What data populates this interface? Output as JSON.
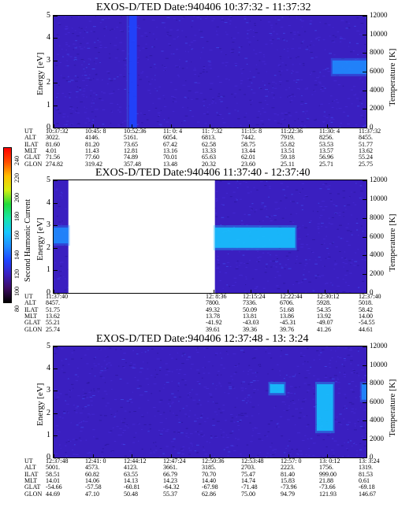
{
  "colors": {
    "background_plot": "#3a1fc0",
    "gap": "#ffffff",
    "enhancement": "#1f66ff",
    "axis": "#000000"
  },
  "colorbar": {
    "label": "Second Harmonic Current",
    "ticks": [
      "240",
      "220",
      "200",
      "180",
      "160",
      "140",
      "120",
      "100",
      "80"
    ],
    "stops": [
      "#000000",
      "#3c0b63",
      "#3a1fc0",
      "#1f45ff",
      "#1f8dff",
      "#16c7ff",
      "#17e6a8",
      "#21dc3b",
      "#d5ef12",
      "#ffc000",
      "#ff4d00",
      "#ff0000"
    ]
  },
  "panels": [
    {
      "title": "EXOS-D/TED   Date:940406  10:37:32 - 11:37:32",
      "ylabel_left": "Energy [eV]",
      "ylabel_right": "Temperature [K]",
      "yticks_left": [
        "0",
        "1",
        "2",
        "3",
        "4",
        "5"
      ],
      "yticks_right": [
        "0",
        "2000",
        "4000",
        "6000",
        "8000",
        "10000",
        "12000"
      ],
      "row_labels": [
        "UT",
        "ALT",
        "ILAT",
        "MLT",
        "GLAT",
        "GLON"
      ],
      "columns": [
        [
          "10:37:32",
          "3022.",
          "81.60",
          "4.01",
          "71.56",
          "274.82"
        ],
        [
          "10:45: 8",
          "4146.",
          "81.20",
          "11.43",
          "77.60",
          "319.42"
        ],
        [
          "10:52:36",
          "5161.",
          "73.65",
          "12.81",
          "74.89",
          "357.48"
        ],
        [
          "11: 0: 4",
          "6054.",
          "67.42",
          "13.16",
          "70.01",
          "13.48"
        ],
        [
          "11: 7:32",
          "6813.",
          "62.58",
          "13.33",
          "65.63",
          "20.32"
        ],
        [
          "11:15: 8",
          "7442.",
          "58.75",
          "13.44",
          "62.01",
          "23.60"
        ],
        [
          "11:22:36",
          "7919.",
          "55.82",
          "13.51",
          "59.18",
          "25.11"
        ],
        [
          "11:30: 4",
          "8256.",
          "53.53",
          "13.57",
          "56.96",
          "25.71"
        ],
        [
          "11:37:32",
          "8455.",
          "51.77",
          "13.62",
          "55.24",
          "25.75"
        ]
      ]
    },
    {
      "title": "EXOS-D/TED   Date:940406  11:37:40 - 12:37:40",
      "ylabel_left": "Energy [eV]",
      "ylabel_right": "Temperature [K]",
      "yticks_left": [
        "0",
        "1",
        "2",
        "3",
        "4",
        "5"
      ],
      "yticks_right": [
        "0",
        "2000",
        "4000",
        "6000",
        "8000",
        "10000",
        "12000"
      ],
      "row_labels": [
        "UT",
        "ALT",
        "ILAT",
        "MLT",
        "GLAT",
        "GLON"
      ],
      "columns": [
        [
          "11:37:40",
          "8457.",
          "51.75",
          "13.62",
          "55.21",
          "25.74"
        ],
        [
          "12: 8:36",
          "7800.",
          "49.32",
          "13.78",
          "-41.92",
          "39.61"
        ],
        [
          "12:15:24",
          "7336.",
          "50.09",
          "13.81",
          "-43.03",
          "39.36"
        ],
        [
          "12:22:44",
          "6706.",
          "51.68",
          "13.86",
          "-45.31",
          "39.76"
        ],
        [
          "12:30:12",
          "5928.",
          "54.35",
          "13.92",
          "-49.07",
          "41.26"
        ],
        [
          "12:37:40",
          "5018.",
          "58.42",
          "14.00",
          "-54.55",
          "44.61"
        ]
      ]
    },
    {
      "title": "EXOS-D/TED   Date:940406  12:37:48 - 13: 3:24",
      "ylabel_left": "Energy [eV]",
      "ylabel_right": "Temperature [K]",
      "yticks_left": [
        "0",
        "1",
        "2",
        "3",
        "4",
        "5"
      ],
      "yticks_right": [
        "0",
        "2000",
        "4000",
        "6000",
        "8000",
        "10000",
        "12000"
      ],
      "row_labels": [
        "UT",
        "ALT",
        "ILAT",
        "MLT",
        "GLAT",
        "GLON"
      ],
      "columns": [
        [
          "12:37:48",
          "5001.",
          "58.51",
          "14.01",
          "-54.66",
          "44.69"
        ],
        [
          "12:41: 0",
          "4573.",
          "60.82",
          "14.06",
          "-57.58",
          "47.10"
        ],
        [
          "12:44:12",
          "4123.",
          "63.55",
          "14.13",
          "-60.81",
          "50.48"
        ],
        [
          "12:47:24",
          "3661.",
          "66.79",
          "14.23",
          "-64.32",
          "55.37"
        ],
        [
          "12:50:36",
          "3185.",
          "70.70",
          "14.40",
          "-67.98",
          "62.86"
        ],
        [
          "12:53:48",
          "2703.",
          "75.47",
          "14.74",
          "-71.48",
          "75.00"
        ],
        [
          "12:57: 0",
          "2223.",
          "81.40",
          "15.83",
          "-73.96",
          "94.79"
        ],
        [
          "13: 0:12",
          "1756.",
          "999.00",
          "21.88",
          "-73.66",
          "121.93"
        ],
        [
          "13: 3:24",
          "1319.",
          "81.53",
          "0.61",
          "-69.18",
          "146.67"
        ]
      ]
    }
  ],
  "chart_data": [
    {
      "type": "heatmap",
      "title": "EXOS-D/TED   Date:940406  10:37:32 - 11:37:32",
      "xlabel": "UT",
      "ylabel": "Energy [eV]",
      "ylabel_right": "Temperature [K]",
      "ylim": [
        0,
        5
      ],
      "ylim_right": [
        0,
        12000
      ],
      "x_ticks": [
        "10:37:32",
        "10:45: 8",
        "10:52:36",
        "11: 0: 4",
        "11: 7:32",
        "11:15: 8",
        "11:22:36",
        "11:30: 4",
        "11:37:32"
      ],
      "features": [
        {
          "kind": "vertical-band",
          "t_start": "10:52:00",
          "t_end": "10:53:30",
          "level": 130
        },
        {
          "kind": "warm-patch",
          "t_start": "11:31:00",
          "t_end": "11:37:32",
          "energy": [
            2.4,
            3.0
          ],
          "level": 140
        }
      ]
    },
    {
      "type": "heatmap",
      "title": "EXOS-D/TED   Date:940406  11:37:40 - 12:37:40",
      "xlabel": "UT",
      "ylabel": "Energy [eV]",
      "ylabel_right": "Temperature [K]",
      "ylim": [
        0,
        5
      ],
      "ylim_right": [
        0,
        12000
      ],
      "x_ticks": [
        "11:37:40",
        "12: 8:36",
        "12:15:24",
        "12:22:44",
        "12:30:12",
        "12:37:40"
      ],
      "features": [
        {
          "kind": "data-gap",
          "t_start": "11:40:30",
          "t_end": "12: 8:36"
        },
        {
          "kind": "enhancement-band",
          "t_start": "12: 8:36",
          "t_end": "12:24:00",
          "energy": [
            2.0,
            2.9
          ],
          "level": 150
        },
        {
          "kind": "enhancement-band",
          "t_start": "11:37:40",
          "t_end": "11:40:30",
          "energy": [
            2.2,
            2.9
          ],
          "level": 145
        }
      ]
    },
    {
      "type": "heatmap",
      "title": "EXOS-D/TED   Date:940406  12:37:48 - 13: 3:24",
      "xlabel": "UT",
      "ylabel": "Energy [eV]",
      "ylabel_right": "Temperature [K]",
      "ylim": [
        0,
        5
      ],
      "ylim_right": [
        0,
        12000
      ],
      "x_ticks": [
        "12:37:48",
        "12:41: 0",
        "12:44:12",
        "12:47:24",
        "12:50:36",
        "12:53:48",
        "12:57: 0",
        "13: 0:12",
        "13: 3:24"
      ],
      "features": [
        {
          "kind": "enhancement-band",
          "t_start": "12:55:30",
          "t_end": "12:56:40",
          "energy": [
            2.9,
            3.3
          ],
          "level": 150
        },
        {
          "kind": "enhancement-band",
          "t_start": "12:59:20",
          "t_end": "13: 0:40",
          "energy": [
            1.2,
            3.3
          ],
          "level": 150
        },
        {
          "kind": "enhancement-band",
          "t_start": "13: 3: 0",
          "t_end": "13: 3:24",
          "energy": [
            2.6,
            3.3
          ],
          "level": 145
        }
      ]
    }
  ]
}
